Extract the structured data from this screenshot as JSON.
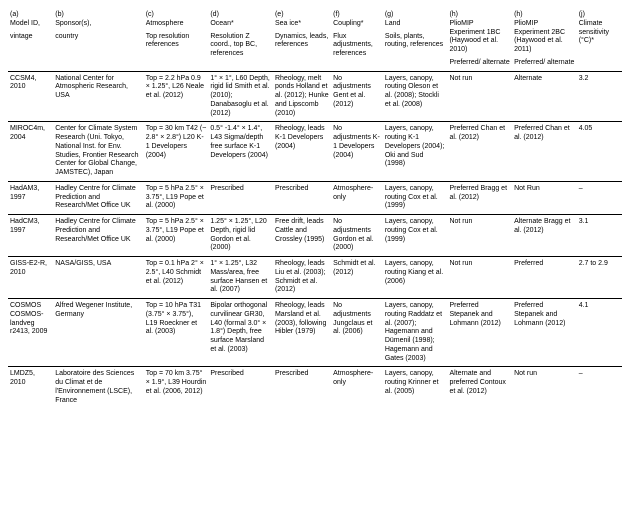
{
  "headers": [
    {
      "tag": "(a)",
      "line1": "Model ID,",
      "line2": "vintage"
    },
    {
      "tag": "(b)",
      "line1": "Sponsor(s),",
      "line2": "country"
    },
    {
      "tag": "(c)",
      "line1": "Atmosphere",
      "line2": "Top resolution references"
    },
    {
      "tag": "(d)",
      "line1": "Ocean*",
      "line2": "Resolution Z coord., top BC, references"
    },
    {
      "tag": "(e)",
      "line1": "Sea ice*",
      "line2": "Dynamics, leads, references"
    },
    {
      "tag": "(f)",
      "line1": "Coupling*",
      "line2": "Flux adjustments, references"
    },
    {
      "tag": "(g)",
      "line1": "Land",
      "line2": "Soils, plants, routing, references"
    },
    {
      "tag": "(h)",
      "line1": "PlioMIP Experiment 1BC (Haywood et al. 2010)",
      "line2": "Preferred/ alternate"
    },
    {
      "tag": "(h)",
      "line1": "PlioMIP Experiment 2BC (Haywood et al. 2011)",
      "line2": "Preferred/ alternate"
    },
    {
      "tag": "(j)",
      "line1": "Climate sensitivity (°C)*",
      "line2": ""
    }
  ],
  "rows": [
    {
      "cells": [
        "CCSM4, 2010",
        "National Center for Atmospheric Research, USA",
        "Top = 2.2 hPa 0.9 × 1.25°, L26 Neale et al. (2012)",
        "1° × 1°, L60 Depth, rigid lid Smith et al. (2010); Danabasoglu et al. (2012)",
        "Rheology, melt ponds Holland et al. (2012); Hunke and Lipscomb (2010)",
        "No adjustments Gent et al. (2012)",
        "Layers, canopy, routing Oleson et al. (2008); Stockli et al. (2008)",
        "Not run",
        "Alternate",
        "3.2"
      ]
    },
    {
      "cells": [
        "MIROC4m, 2004",
        "Center for Climate System Research (Uni. Tokyo, National Inst. for Env. Studies, Frontier Research Center for Global Change, JAMSTEC), Japan",
        "Top = 30 km T42 (~ 2.8° × 2.8°) L20 K-1 Developers (2004)",
        "0.5° -1.4° × 1.4°, L43 Sigma/depth free surface K-1 Developers (2004)",
        "Rheology, leads K-1 Developers (2004)",
        "No adjustments K-1 Developers (2004)",
        "Layers, canopy, routing K-1 Developers (2004); Oki and Sud (1998)",
        "Preferred Chan et al. (2012)",
        "Preferred Chan et al. (2012)",
        "4.05"
      ]
    },
    {
      "cells": [
        "HadAM3, 1997",
        "Hadley Centre for Climate Prediction and Research/Met Office UK",
        "Top = 5 hPa 2.5° × 3.75°, L19 Pope et al. (2000)",
        "Prescribed",
        "Prescribed",
        "Atmosphere-only",
        "Layers, canopy, routing Cox et al. (1999)",
        "Preferred Bragg et al. (2012)",
        "Not Run",
        "–"
      ]
    },
    {
      "cells": [
        "HadCM3, 1997",
        "Hadley Centre for Climate Prediction and Research/Met Office UK",
        "Top = 5 hPa 2.5° × 3.75°, L19 Pope et al. (2000)",
        "1.25° × 1.25°, L20 Depth, rigid lid Gordon et al. (2000)",
        "Free drift, leads Cattle and Crossley (1995)",
        "No adjustments Gordon et al. (2000)",
        "Layers, canopy, routing Cox et al. (1999)",
        "Not run",
        "Alternate Bragg et al. (2012)",
        "3.1"
      ]
    },
    {
      "cells": [
        "GISS-E2-R, 2010",
        "NASA/GISS, USA",
        "Top = 0.1 hPa 2° × 2.5°, L40 Schmidt et al. (2012)",
        "1° × 1.25°, L32 Mass/area, free surface Hansen et al. (2007)",
        "Rheology, leads Liu et al. (2003); Schmidt et al. (2012)",
        "Schmidt et al. (2012)",
        "Layers, canopy, routing Kiang et al. (2006)",
        "Not run",
        "Preferred",
        "2.7 to 2.9"
      ]
    },
    {
      "cells": [
        "COSMOS COSMOS-landveg r2413, 2009",
        "Alfred Wegener Institute, Germany",
        "Top = 10 hPa T31 (3.75° × 3.75°), L19 Roeckner et al. (2003)",
        "Bipolar orthogonal curvilinear GR30, L40 (formal 3.0° × 1.8°) Depth, free surface Marsland et al. (2003)",
        "Rheology, leads Marsland et al. (2003), following Hibler (1979)",
        "No adjustments Jungclaus et al. (2006)",
        "Layers, canopy, routing Raddatz et al. (2007); Hagemann and Dümenil (1998); Hagemann and Gates (2003)",
        "Preferred Stepanek and Lohmann (2012)",
        "Preferred Stepanek and Lohmann (2012)",
        "4.1"
      ]
    },
    {
      "cells": [
        "LMDZ5, 2010",
        "Laboratoire des Sciences du Climat et de l'Environnement (LSCE), France",
        "Top = 70 km 3.75° × 1.9°, L39 Hourdin et al. (2006, 2012)",
        "Prescribed",
        "Prescribed",
        "Atmosphere-only",
        "Layers, canopy, routing Krinner et al. (2005)",
        "Alternate and preferred Contoux et al. (2012)",
        "Not run",
        "–"
      ]
    }
  ]
}
